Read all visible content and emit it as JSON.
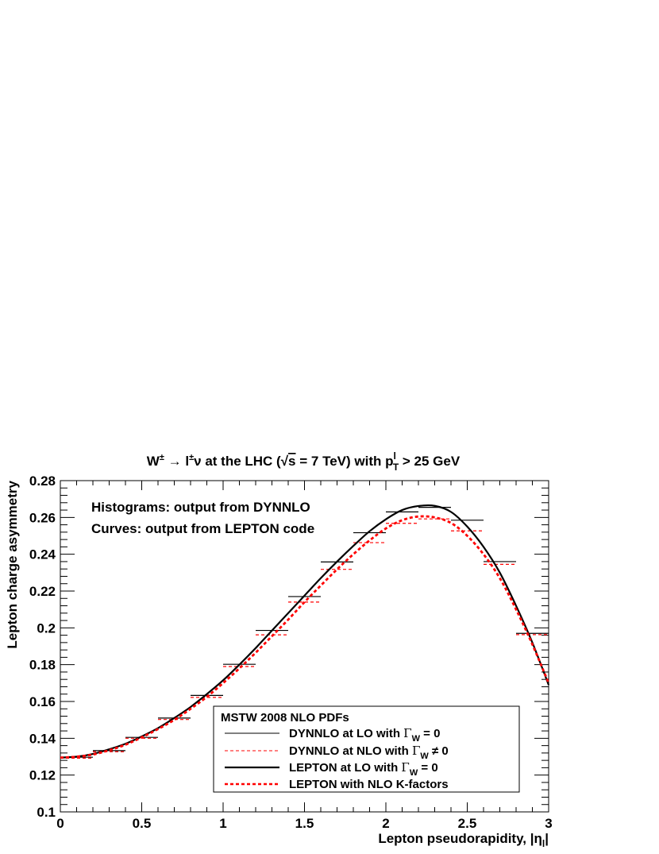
{
  "chart_data": {
    "type": "line",
    "title_parts": {
      "w": "W",
      "pm1": "±",
      "arrow": " → ",
      "l": "l",
      "pm2": "±",
      "nu": "ν",
      "mid": " at the LHC (",
      "sqrt": "√",
      "s": "s",
      "energy": " = 7 TeV) with p",
      "pt_sup": "l",
      "pt_sub": "T",
      "cut": " > 25 GeV"
    },
    "xlabel_main": "Lepton pseudorapidity, |η",
    "xlabel_sub": "l",
    "xlabel_end": "|",
    "ylabel": "Lepton charge asymmetry",
    "xlim": [
      0,
      3
    ],
    "ylim": [
      0.1,
      0.28
    ],
    "xticks": [
      {
        "v": 0,
        "label": "0"
      },
      {
        "v": 0.5,
        "label": "0.5"
      },
      {
        "v": 1,
        "label": "1"
      },
      {
        "v": 1.5,
        "label": "1.5"
      },
      {
        "v": 2,
        "label": "2"
      },
      {
        "v": 2.5,
        "label": "2.5"
      },
      {
        "v": 3,
        "label": "3"
      }
    ],
    "yticks": [
      {
        "v": 0.1,
        "label": "0.1"
      },
      {
        "v": 0.12,
        "label": "0.12"
      },
      {
        "v": 0.14,
        "label": "0.14"
      },
      {
        "v": 0.16,
        "label": "0.16"
      },
      {
        "v": 0.18,
        "label": "0.18"
      },
      {
        "v": 0.2,
        "label": "0.2"
      },
      {
        "v": 0.22,
        "label": "0.22"
      },
      {
        "v": 0.24,
        "label": "0.24"
      },
      {
        "v": 0.26,
        "label": "0.26"
      },
      {
        "v": 0.28,
        "label": "0.28"
      }
    ],
    "annotations": [
      "Histograms: output from DYNNLO",
      "Curves: output from LEPTON code"
    ],
    "legend": {
      "header": "MSTW 2008 NLO PDFs",
      "placement": "bottom-right",
      "entries": [
        {
          "pre": "DYNNLO at LO with ",
          "sym": "Γ",
          "sub": "W",
          "post": " = 0",
          "style": "hist-lo"
        },
        {
          "pre": "DYNNLO at NLO with ",
          "sym": "Γ",
          "sub": "W",
          "post": " ≠ 0",
          "style": "hist-nlo"
        },
        {
          "pre": "LEPTON at LO with ",
          "sym": "Γ",
          "sub": "W",
          "post": " = 0",
          "style": "curve-lo"
        },
        {
          "pre": "LEPTON with NLO K-factors",
          "sym": "",
          "sub": "",
          "post": "",
          "style": "curve-nlo"
        }
      ]
    },
    "bin_edges": [
      0,
      0.2,
      0.4,
      0.6,
      0.8,
      1.0,
      1.2,
      1.4,
      1.6,
      1.8,
      2.0,
      2.2,
      2.4,
      2.6,
      2.8,
      3.0
    ],
    "series": [
      {
        "name": "DYNNLO at LO with ΓW = 0",
        "kind": "histogram",
        "color": "#000000",
        "values": [
          0.1297,
          0.1333,
          0.1405,
          0.151,
          0.1633,
          0.1802,
          0.1986,
          0.217,
          0.2358,
          0.2517,
          0.263,
          0.2655,
          0.2585,
          0.236,
          0.197
        ]
      },
      {
        "name": "DYNNLO at NLO with ΓW ≠ 0",
        "kind": "histogram",
        "color": "#ff0000",
        "values": [
          0.1292,
          0.1327,
          0.14,
          0.1502,
          0.1622,
          0.179,
          0.1962,
          0.214,
          0.2318,
          0.2463,
          0.2568,
          0.2592,
          0.2527,
          0.2345,
          0.1963
        ]
      },
      {
        "name": "LEPTON at LO with ΓW = 0",
        "kind": "curve",
        "color": "#000000",
        "x": [
          0,
          0.1,
          0.2,
          0.3,
          0.4,
          0.5,
          0.6,
          0.7,
          0.8,
          0.9,
          1.0,
          1.1,
          1.2,
          1.3,
          1.4,
          1.5,
          1.6,
          1.7,
          1.8,
          1.9,
          2.0,
          2.1,
          2.2,
          2.3,
          2.4,
          2.5,
          2.6,
          2.7,
          2.8,
          2.9,
          3.0
        ],
        "y": [
          0.1295,
          0.13,
          0.1315,
          0.134,
          0.137,
          0.141,
          0.1455,
          0.151,
          0.157,
          0.164,
          0.1715,
          0.18,
          0.189,
          0.1985,
          0.208,
          0.2175,
          0.227,
          0.236,
          0.2445,
          0.2525,
          0.259,
          0.264,
          0.2662,
          0.2663,
          0.263,
          0.255,
          0.244,
          0.23,
          0.212,
          0.192,
          0.169
        ]
      },
      {
        "name": "LEPTON with NLO K-factors",
        "kind": "curve",
        "color": "#ff0000",
        "x": [
          0,
          0.1,
          0.2,
          0.3,
          0.4,
          0.5,
          0.6,
          0.7,
          0.8,
          0.9,
          1.0,
          1.1,
          1.2,
          1.3,
          1.4,
          1.5,
          1.6,
          1.7,
          1.8,
          1.9,
          2.0,
          2.1,
          2.2,
          2.3,
          2.4,
          2.5,
          2.6,
          2.7,
          2.8,
          2.9,
          3.0
        ],
        "y": [
          0.1295,
          0.13,
          0.1312,
          0.1335,
          0.1365,
          0.1405,
          0.145,
          0.15,
          0.156,
          0.1625,
          0.17,
          0.178,
          0.1865,
          0.1955,
          0.2045,
          0.214,
          0.223,
          0.2318,
          0.24,
          0.2475,
          0.254,
          0.2585,
          0.2605,
          0.26,
          0.257,
          0.25,
          0.24,
          0.227,
          0.21,
          0.191,
          0.17
        ]
      }
    ],
    "grid": false
  }
}
